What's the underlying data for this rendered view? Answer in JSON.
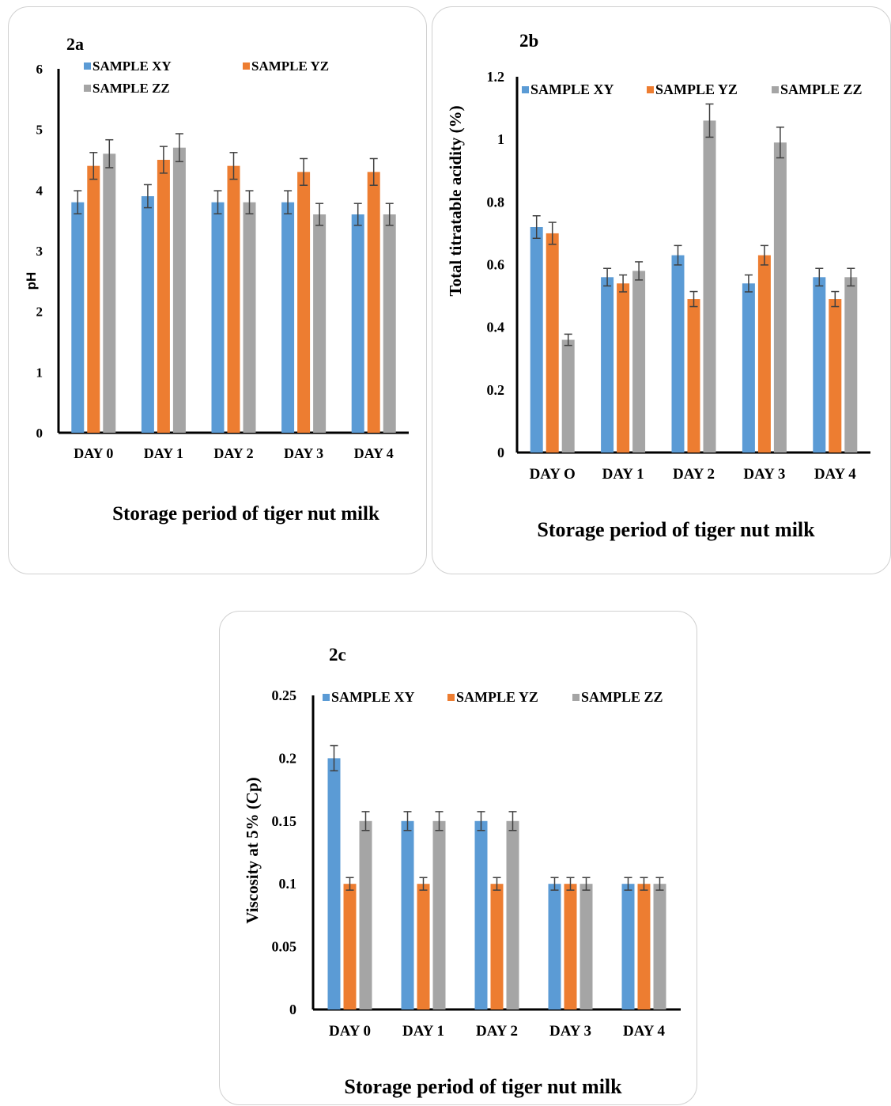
{
  "colors": {
    "xy": "#5b9bd5",
    "yz": "#ed7d31",
    "zz": "#a5a5a5",
    "axis": "#000000",
    "error": "#404040"
  },
  "chart_data": [
    {
      "id": "2a",
      "type": "bar",
      "panel_label": "2a",
      "xlabel": "Storage period of tiger nut milk",
      "ylabel": "pH",
      "ylim": [
        0,
        6
      ],
      "yticks": [
        "0",
        "1",
        "2",
        "3",
        "4",
        "5",
        "6"
      ],
      "categories": [
        "DAY 0",
        "DAY 1",
        "DAY 2",
        "DAY 3",
        "DAY 4"
      ],
      "legend_position": "top",
      "series": [
        {
          "name": "SAMPLE XY",
          "color_key": "xy",
          "values": [
            3.8,
            3.9,
            3.8,
            3.8,
            3.6
          ],
          "errors": [
            0.19,
            0.19,
            0.19,
            0.19,
            0.18
          ]
        },
        {
          "name": "SAMPLE YZ",
          "color_key": "yz",
          "values": [
            4.4,
            4.5,
            4.4,
            4.3,
            4.3
          ],
          "errors": [
            0.22,
            0.22,
            0.22,
            0.22,
            0.22
          ]
        },
        {
          "name": "SAMPLE ZZ",
          "color_key": "zz",
          "values": [
            4.6,
            4.7,
            3.8,
            3.6,
            3.6
          ],
          "errors": [
            0.23,
            0.23,
            0.19,
            0.18,
            0.18
          ]
        }
      ]
    },
    {
      "id": "2b",
      "type": "bar",
      "panel_label": "2b",
      "xlabel": "Storage period of tiger nut milk",
      "ylabel": "Total titratable acidity (%)",
      "ylim": [
        0,
        1.2
      ],
      "yticks": [
        "0",
        "0.2",
        "0.4",
        "0.6",
        "0.8",
        "1",
        "1.2"
      ],
      "categories": [
        "DAY O",
        "DAY 1",
        "DAY 2",
        "DAY 3",
        "DAY 4"
      ],
      "legend_position": "top",
      "series": [
        {
          "name": "SAMPLE XY",
          "color_key": "xy",
          "values": [
            0.72,
            0.56,
            0.63,
            0.54,
            0.56
          ],
          "errors": [
            0.036,
            0.028,
            0.031,
            0.027,
            0.028
          ]
        },
        {
          "name": "SAMPLE YZ",
          "color_key": "yz",
          "values": [
            0.7,
            0.54,
            0.49,
            0.63,
            0.49
          ],
          "errors": [
            0.035,
            0.027,
            0.024,
            0.031,
            0.024
          ]
        },
        {
          "name": "SAMPLE ZZ",
          "color_key": "zz",
          "values": [
            0.36,
            0.58,
            1.06,
            0.99,
            0.56
          ],
          "errors": [
            0.018,
            0.029,
            0.053,
            0.049,
            0.028
          ]
        }
      ]
    },
    {
      "id": "2c",
      "type": "bar",
      "panel_label": "2c",
      "xlabel": "Storage period of tiger nut milk",
      "ylabel": "Viscosity at 5% (Cp)",
      "ylim": [
        0,
        0.25
      ],
      "yticks": [
        "0",
        "0.05",
        "0.1",
        "0.15",
        "0.2",
        "0.25"
      ],
      "categories": [
        "DAY 0",
        "DAY 1",
        "DAY 2",
        "DAY 3",
        "DAY 4"
      ],
      "legend_position": "top",
      "series": [
        {
          "name": "SAMPLE XY",
          "color_key": "xy",
          "values": [
            0.2,
            0.15,
            0.15,
            0.1,
            0.1
          ],
          "errors": [
            0.01,
            0.0075,
            0.0075,
            0.005,
            0.005
          ]
        },
        {
          "name": "SAMPLE YZ",
          "color_key": "yz",
          "values": [
            0.1,
            0.1,
            0.1,
            0.1,
            0.1
          ],
          "errors": [
            0.005,
            0.005,
            0.005,
            0.005,
            0.005
          ]
        },
        {
          "name": "SAMPLE ZZ",
          "color_key": "zz",
          "values": [
            0.15,
            0.15,
            0.15,
            0.1,
            0.1
          ],
          "errors": [
            0.0075,
            0.0075,
            0.0075,
            0.005,
            0.005
          ]
        }
      ]
    }
  ]
}
